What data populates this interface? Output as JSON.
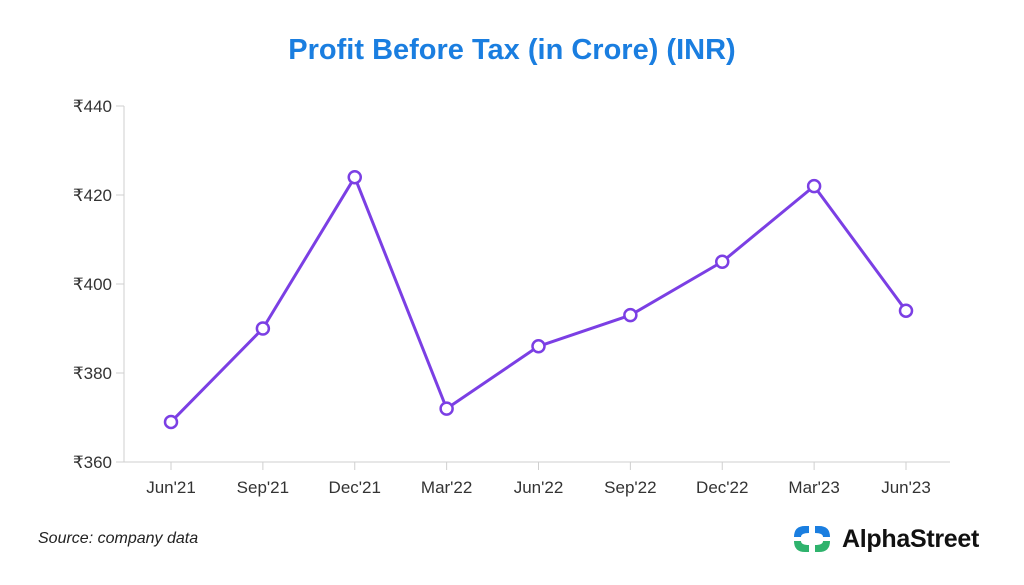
{
  "chart_data": {
    "type": "line",
    "title": "Profit Before Tax (in Crore) (INR)",
    "categories": [
      "Jun'21",
      "Sep'21",
      "Dec'21",
      "Mar'22",
      "Jun'22",
      "Sep'22",
      "Dec'22",
      "Mar'23",
      "Jun'23"
    ],
    "series": [
      {
        "values": [
          369,
          390,
          424,
          372,
          386,
          393,
          405,
          422,
          394
        ]
      }
    ],
    "ylim": [
      360,
      440
    ],
    "yticks": [
      360,
      380,
      400,
      420,
      440
    ],
    "ytick_prefix": "₹",
    "grid": false,
    "line_color": "#7b3fe4"
  },
  "footer": {
    "source": "Source: company data",
    "brand": "AlphaStreet",
    "logo_colors": [
      "#1a7ee0",
      "#2fb36d"
    ]
  }
}
